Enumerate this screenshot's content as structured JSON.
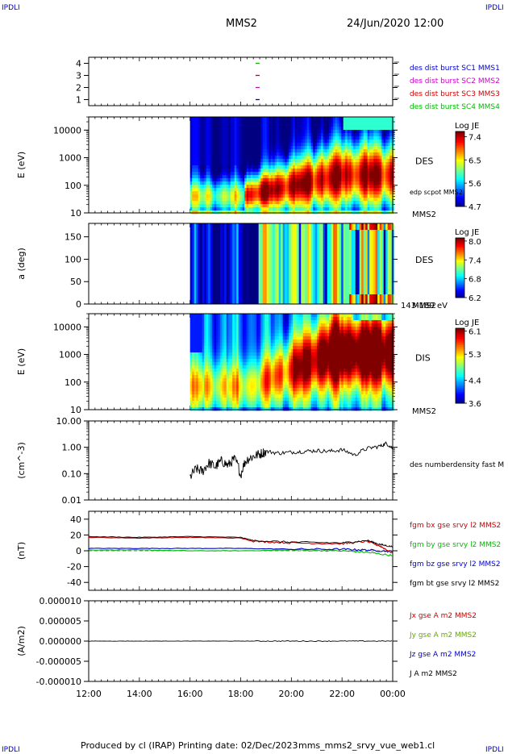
{
  "header": {
    "corner_label": "IPDLI",
    "title": "MMS2",
    "date": "24/Jun/2020 12:00"
  },
  "footer": {
    "produced_by": "Produced by cl (IRAP)",
    "printing_date": "Printing date: 02/Dec/2023",
    "script_name": "mms_mms2_srvy_vue_web1.cl"
  },
  "colors": {
    "mms1": "#0000cc",
    "mms2": "#cc00cc",
    "mms3": "#cc0000",
    "mms4": "#00bb00",
    "bx": "#cc0000",
    "by": "#00bb00",
    "bz": "#0000cc",
    "bt": "#000000"
  },
  "chart_data": [
    {
      "type": "scatter",
      "panel": "availability",
      "ylim": [
        0.5,
        4.5
      ],
      "yticks": [
        "1",
        "2",
        "3",
        "4"
      ],
      "series": [
        {
          "name": "des dist burst SC1 MMS1",
          "x": [
            "18:40"
          ],
          "y": [
            1
          ]
        },
        {
          "name": "des dist burst SC2 MMS2",
          "x": [
            "18:40"
          ],
          "y": [
            2
          ]
        },
        {
          "name": "des dist burst SC3 MMS3",
          "x": [
            "18:40"
          ],
          "y": [
            3
          ]
        },
        {
          "name": "des dist burst SC4 MMS4",
          "x": [
            "18:40"
          ],
          "y": [
            4
          ]
        }
      ]
    },
    {
      "type": "heatmap",
      "panel": "des-energy",
      "ylabel": "E (eV)",
      "yscale": "log",
      "ylim": [
        10,
        30000
      ],
      "yticks": [
        "10",
        "100",
        "1000",
        "10000"
      ],
      "data_start": "16:00",
      "label": "DES",
      "sublabel": "MMS2",
      "overlay": "edp scpot MMS2",
      "colorbar": {
        "title": "Log JE",
        "ticks": [
          "4.7",
          "5.6",
          "6.5",
          "7.4"
        ],
        "range": [
          4.7,
          7.6
        ]
      }
    },
    {
      "type": "heatmap",
      "panel": "des-pitch",
      "ylabel": "a (deg)",
      "ylim": [
        0,
        180
      ],
      "yticks": [
        "0",
        "50",
        "100",
        "150"
      ],
      "data_start": "16:00",
      "label": "DES",
      "sublabel": "MMS2",
      "energy_range": "143-189 eV",
      "colorbar": {
        "title": "Log JE",
        "ticks": [
          "6.2",
          "6.8",
          "7.4",
          "8.0"
        ],
        "range": [
          6.2,
          8.1
        ]
      }
    },
    {
      "type": "heatmap",
      "panel": "dis-energy",
      "ylabel": "E (eV)",
      "yscale": "log",
      "ylim": [
        10,
        30000
      ],
      "yticks": [
        "10",
        "100",
        "1000",
        "10000"
      ],
      "data_start": "16:00",
      "label": "DIS",
      "sublabel": "MMS2",
      "colorbar": {
        "title": "Log JE",
        "ticks": [
          "3.6",
          "4.4",
          "5.3",
          "6.1"
        ],
        "range": [
          3.6,
          6.2
        ]
      }
    },
    {
      "type": "line",
      "panel": "density",
      "ylabel": "(cm^-3)",
      "yscale": "log",
      "ylim": [
        0.01,
        10
      ],
      "yticks": [
        "0.01",
        "0.10",
        "1.00",
        "10.00"
      ],
      "series": [
        {
          "name": "des numberdensity fast M",
          "x": [
            "16:00",
            "16:15",
            "16:30",
            "16:45",
            "17:00",
            "17:15",
            "17:30",
            "17:45",
            "18:00",
            "18:15",
            "18:30",
            "18:45",
            "19:00",
            "19:30",
            "20:00",
            "20:30",
            "21:00",
            "21:30",
            "22:00",
            "22:30",
            "23:00",
            "23:30",
            "23:45",
            "00:00"
          ],
          "y": [
            0.07,
            0.15,
            0.12,
            0.25,
            0.18,
            0.3,
            0.2,
            0.35,
            0.08,
            0.35,
            0.45,
            0.55,
            0.7,
            0.6,
            0.65,
            0.7,
            0.75,
            0.7,
            0.8,
            0.5,
            0.9,
            1.1,
            1.4,
            0.9
          ]
        }
      ]
    },
    {
      "type": "line",
      "panel": "magnetic-field",
      "ylabel": "(nT)",
      "ylim": [
        -50,
        50
      ],
      "yticks": [
        "-40",
        "-20",
        "0",
        "20",
        "40"
      ],
      "series": [
        {
          "name": "fgm bx gse srvy l2 MMS2",
          "x": [
            "12:00",
            "14:00",
            "16:00",
            "18:00",
            "18:30",
            "20:00",
            "22:00",
            "23:00",
            "23:30",
            "00:00"
          ],
          "y": [
            17,
            16,
            17,
            16,
            12,
            10,
            9,
            12,
            6,
            -3
          ]
        },
        {
          "name": "fgm by gse srvy l2 MMS2",
          "x": [
            "12:00",
            "14:00",
            "16:00",
            "18:00",
            "20:00",
            "22:00",
            "23:00",
            "00:00"
          ],
          "y": [
            1,
            1,
            0,
            0,
            1,
            0,
            -2,
            -6
          ]
        },
        {
          "name": "fgm bz gse srvy l2 MMS2",
          "x": [
            "12:00",
            "14:00",
            "16:00",
            "18:00",
            "20:00",
            "22:00",
            "23:00",
            "00:00"
          ],
          "y": [
            3,
            3,
            3,
            3,
            2,
            2,
            1,
            -1
          ]
        },
        {
          "name": "fgm bt gse srvy l2 MMS2",
          "x": [
            "12:00",
            "14:00",
            "16:00",
            "18:00",
            "18:30",
            "20:00",
            "22:00",
            "23:00",
            "23:30",
            "00:00"
          ],
          "y": [
            18,
            17,
            18,
            17,
            13,
            11,
            10,
            13,
            8,
            5
          ]
        }
      ]
    },
    {
      "type": "line",
      "panel": "current-density",
      "ylabel": "(A/m2)",
      "ylim": [
        -1e-05,
        1e-05
      ],
      "yticks": [
        "-0.000010",
        "-0.000005",
        "0.000000",
        "0.000005",
        "0.000010"
      ],
      "series": [
        {
          "name": "Jx gse A m2 MMS2",
          "x": [
            "12:00",
            "00:00"
          ],
          "y": [
            0,
            0
          ]
        },
        {
          "name": "Jy gse A m2 MMS2",
          "x": [
            "12:00",
            "00:00"
          ],
          "y": [
            0,
            0
          ]
        },
        {
          "name": "Jz gse A m2 MMS2",
          "x": [
            "12:00",
            "00:00"
          ],
          "y": [
            0,
            0
          ]
        },
        {
          "name": "J A m2 MMS2",
          "x": [
            "12:00",
            "00:00"
          ],
          "y": [
            0,
            0
          ]
        }
      ]
    }
  ],
  "time_axis": {
    "ticks": [
      "12:00",
      "14:00",
      "16:00",
      "18:00",
      "20:00",
      "22:00",
      "00:00"
    ]
  }
}
